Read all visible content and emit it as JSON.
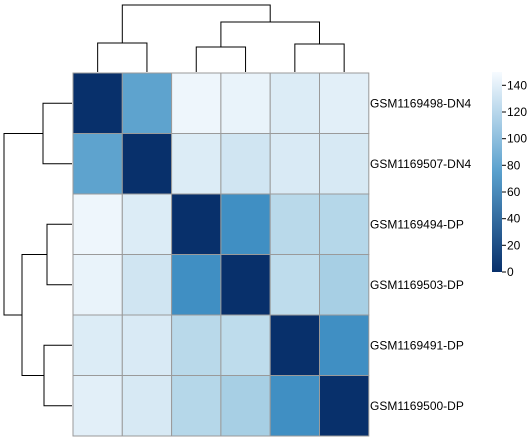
{
  "chart_data": {
    "type": "heatmap",
    "row_labels": [
      "GSM1169498-DN4",
      "GSM1169507-DN4",
      "GSM1169494-DP",
      "GSM1169503-DP",
      "GSM1169491-DP",
      "GSM1169500-DP"
    ],
    "values": [
      [
        0,
        72,
        145,
        142,
        135,
        138
      ],
      [
        72,
        0,
        135,
        128,
        133,
        132
      ],
      [
        145,
        135,
        0,
        58,
        115,
        113
      ],
      [
        142,
        128,
        58,
        0,
        118,
        105
      ],
      [
        135,
        133,
        115,
        118,
        0,
        58
      ],
      [
        138,
        132,
        113,
        105,
        58,
        0
      ]
    ],
    "legend": {
      "min": 0,
      "max": 150,
      "ticks": [
        "0",
        "20",
        "40",
        "60",
        "80",
        "100",
        "120",
        "140"
      ],
      "low_color": "#08306b",
      "high_color": "#f7fbff"
    },
    "column_dendrogram": true,
    "row_dendrogram": true,
    "grid": true
  }
}
